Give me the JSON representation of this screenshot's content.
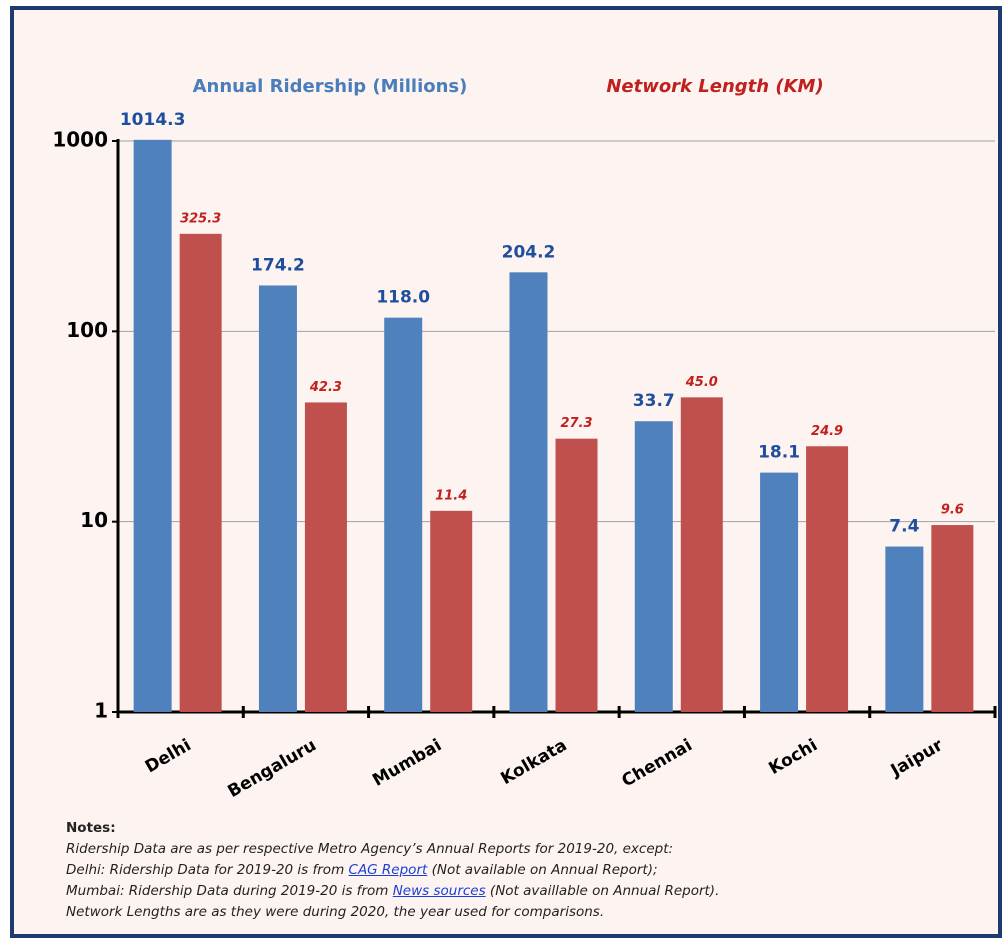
{
  "chart_data": {
    "type": "bar",
    "log_scale": true,
    "grid": true,
    "categories": [
      "Delhi",
      "Bengaluru",
      "Mumbai",
      "Kolkata",
      "Chennai",
      "Kochi",
      "Jaipur"
    ],
    "series": [
      {
        "name": "Annual Ridership (Millions)",
        "color": "#4f81bd",
        "values": [
          1014.3,
          174.2,
          118.0,
          204.2,
          33.7,
          18.1,
          7.4
        ],
        "value_labels": [
          "1014.3",
          "174.2",
          "118.0",
          "204.2",
          "33.7",
          "18.1",
          "7.4"
        ]
      },
      {
        "name": "Network Length (KM)",
        "color": "#c0504d",
        "values": [
          325.3,
          42.3,
          11.4,
          27.3,
          45.0,
          24.9,
          9.6
        ],
        "value_labels": [
          "325.3",
          "42.3",
          "11.4",
          "27.3",
          "45.0",
          "24.9",
          "9.6"
        ]
      }
    ],
    "ylim": [
      1,
      1000
    ],
    "yticks": [
      1,
      10,
      100,
      1000
    ]
  },
  "notes": {
    "title": "Notes:",
    "lines": [
      {
        "text": "Ridership Data are as per respective Metro Agency’s Annual Reports for 2019-20, except:"
      },
      {
        "text": "Delhi:  Ridership Data for 2019-20  is from ",
        "link": "CAG Report",
        "after": " (Not available on Annual Report);"
      },
      {
        "text": "Mumbai:  Ridership Data during 2019-20  is from ",
        "link": "News sources",
        "after": " (Not availlable on Annual Report)."
      },
      {
        "text": "Network Lengths are as they were during 2020, the year used for comparisons."
      }
    ]
  }
}
